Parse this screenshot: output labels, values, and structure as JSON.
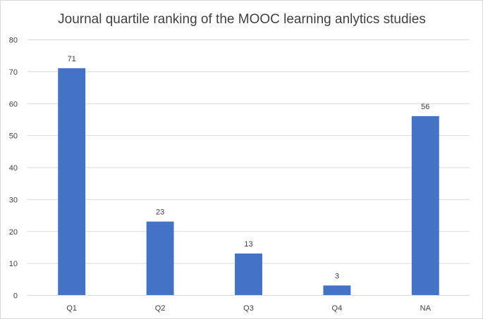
{
  "chart_data": {
    "type": "bar",
    "title": "Journal quartile ranking of the MOOC learning anlytics studies",
    "categories": [
      "Q1",
      "Q2",
      "Q3",
      "Q4",
      "NA"
    ],
    "values": [
      71,
      23,
      13,
      3,
      56
    ],
    "data_labels": [
      "71",
      "23",
      "13",
      "3",
      "56"
    ],
    "yticks": [
      0,
      10,
      20,
      30,
      40,
      50,
      60,
      70,
      80
    ],
    "ylim": [
      0,
      80
    ],
    "xlabel": "",
    "ylabel": "",
    "grid": true,
    "legend": "none",
    "bar_color": "#4472C4"
  }
}
